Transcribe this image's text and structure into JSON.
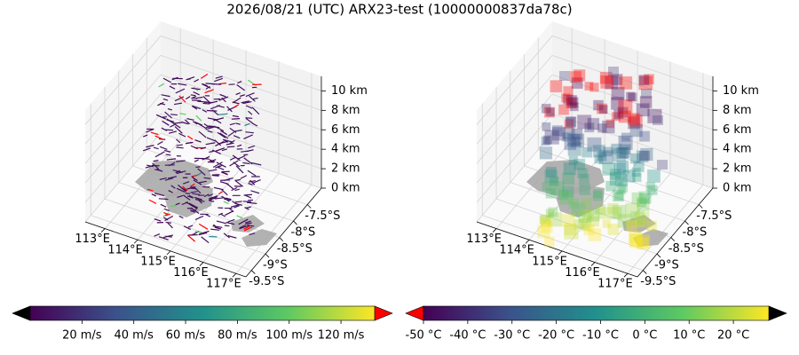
{
  "title": "2026/08/21 (UTC) ARX23-test (10000000837da78c)",
  "chart_data": [
    {
      "type": "quiver3d",
      "xlim": [
        112.4,
        117.3
      ],
      "xticks": [
        {
          "value": 113,
          "label": "113°E"
        },
        {
          "value": 114,
          "label": "114°E"
        },
        {
          "value": 115,
          "label": "115°E"
        },
        {
          "value": 116,
          "label": "116°E"
        },
        {
          "value": 117,
          "label": "117°E"
        }
      ],
      "ylim": [
        -9.7,
        -7.0
      ],
      "yticks": [
        {
          "value": -9.5,
          "label": "-9.5°S"
        },
        {
          "value": -9,
          "label": "-9°S"
        },
        {
          "value": -8.5,
          "label": "-8.5°S"
        },
        {
          "value": -8,
          "label": "-8°S"
        },
        {
          "value": -7.5,
          "label": "-7.5°S"
        }
      ],
      "zlim": [
        0,
        11.5
      ],
      "zticks": [
        {
          "value": 0,
          "label": "0 km"
        },
        {
          "value": 2,
          "label": "2 km"
        },
        {
          "value": 4,
          "label": "4 km"
        },
        {
          "value": 6,
          "label": "6 km"
        },
        {
          "value": 8,
          "label": "8 km"
        },
        {
          "value": 10,
          "label": "10 km"
        }
      ],
      "colorbar": {
        "lim": [
          0,
          133
        ],
        "ticks": [
          {
            "value": 20,
            "label": "20 m/s"
          },
          {
            "value": 40,
            "label": "40 m/s"
          },
          {
            "value": 60,
            "label": "60 m/s"
          },
          {
            "value": 80,
            "label": "80 m/s"
          },
          {
            "value": 100,
            "label": "100 m/s"
          },
          {
            "value": 120,
            "label": "120 m/s"
          }
        ],
        "colors": [
          "#440154",
          "#3b528b",
          "#21918c",
          "#5ec962",
          "#fde725"
        ],
        "extend_colors": [
          "#000000",
          "#ff0000"
        ]
      }
    },
    {
      "type": "voxel3d",
      "xlim": [
        112.4,
        117.3
      ],
      "xticks": [
        {
          "value": 113,
          "label": "113°E"
        },
        {
          "value": 114,
          "label": "114°E"
        },
        {
          "value": 115,
          "label": "115°E"
        },
        {
          "value": 116,
          "label": "116°E"
        },
        {
          "value": 117,
          "label": "117°E"
        }
      ],
      "ylim": [
        -9.7,
        -7.0
      ],
      "yticks": [
        {
          "value": -9.5,
          "label": "-9.5°S"
        },
        {
          "value": -9,
          "label": "-9°S"
        },
        {
          "value": -8.5,
          "label": "-8.5°S"
        },
        {
          "value": -8,
          "label": "-8°S"
        },
        {
          "value": -7.5,
          "label": "-7.5°S"
        }
      ],
      "zlim": [
        0,
        11.5
      ],
      "zticks": [
        {
          "value": 0,
          "label": "0 km"
        },
        {
          "value": 2,
          "label": "2 km"
        },
        {
          "value": 4,
          "label": "4 km"
        },
        {
          "value": 6,
          "label": "6 km"
        },
        {
          "value": 8,
          "label": "8 km"
        },
        {
          "value": 10,
          "label": "10 km"
        }
      ],
      "colorbar": {
        "lim": [
          -50,
          28
        ],
        "ticks": [
          {
            "value": -50,
            "label": "-50 °C"
          },
          {
            "value": -40,
            "label": "-40 °C"
          },
          {
            "value": -30,
            "label": "-30 °C"
          },
          {
            "value": -20,
            "label": "-20 °C"
          },
          {
            "value": -10,
            "label": "-10 °C"
          },
          {
            "value": 0,
            "label": "0 °C"
          },
          {
            "value": 10,
            "label": "10 °C"
          },
          {
            "value": 20,
            "label": "20 °C"
          }
        ],
        "colors": [
          "#440154",
          "#3b528b",
          "#21918c",
          "#5ec962",
          "#fde725"
        ],
        "extend_colors": [
          "#ff0000",
          "#000000"
        ]
      }
    }
  ]
}
